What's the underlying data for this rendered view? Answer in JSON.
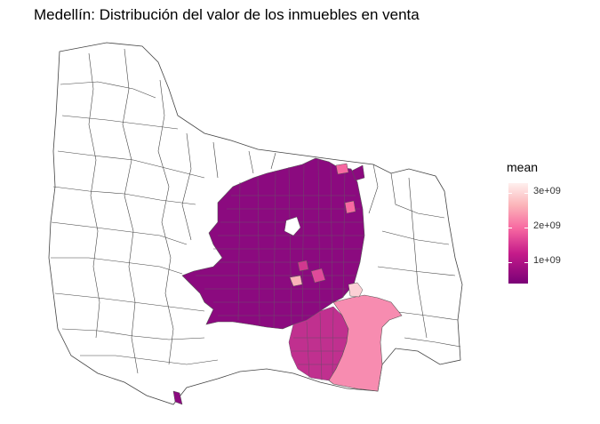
{
  "title": "Medellín: Distribución del valor de los inmuebles en venta",
  "legend": {
    "title": "mean",
    "ticks": [
      {
        "label": "3e+09",
        "value": 3000000000
      },
      {
        "label": "2e+09",
        "value": 2000000000
      },
      {
        "label": "1e+09",
        "value": 1000000000
      }
    ],
    "min_value": 300000000,
    "max_value": 3150000000,
    "colors": [
      "#7a0177",
      "#c51b8a",
      "#f768a1",
      "#fbb4b9",
      "#fff0ee"
    ]
  },
  "map": {
    "rural_fill": "#ffffff",
    "boundary_color": "#444444",
    "urban_base_color": "#8b0a7f",
    "southeast_color": "#f78cb0",
    "south_color": "#c0308f"
  }
}
